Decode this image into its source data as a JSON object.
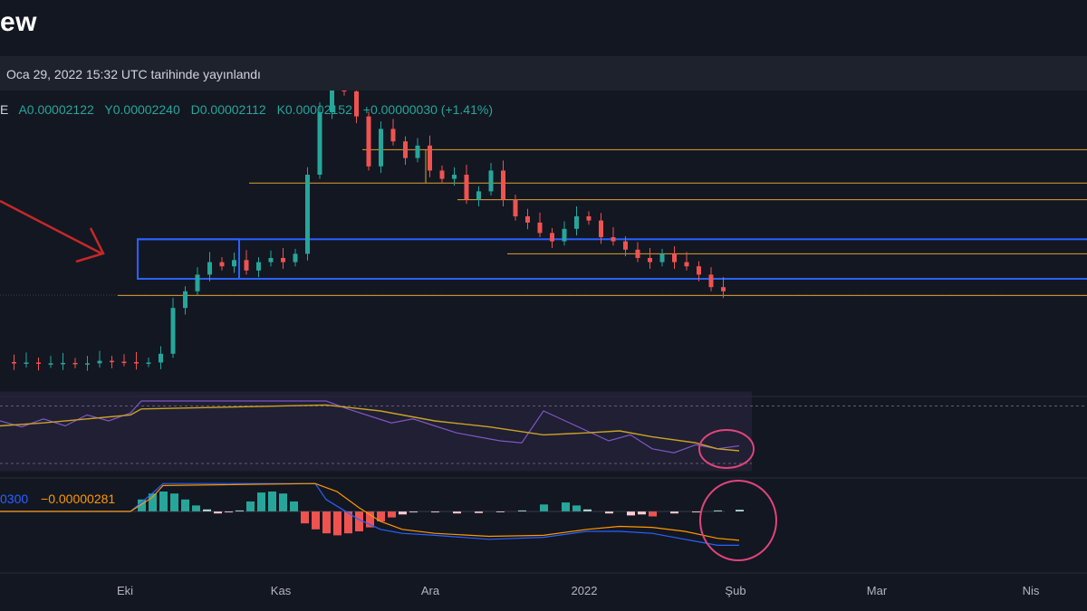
{
  "header": {
    "brand": "ew",
    "published": "Oca 29, 2022 15:32 UTC tarihinde yayınlandı"
  },
  "ohlc": {
    "lead": "E",
    "open": "A0.00002122",
    "high": "Y0.00002240",
    "low": "D0.00002112",
    "close": "K0.00002152",
    "change": "+0.00000030 (+1.41%)"
  },
  "macd_labels": {
    "value_1": "0300",
    "value_2": "−0.00000281"
  },
  "chart_data": {
    "type": "candlestick",
    "x_ticks": [
      "Eki",
      "Kas",
      "Ara",
      "2022",
      "Şub",
      "Mar",
      "Nis"
    ],
    "colors": {
      "background": "#131722",
      "up": "#26a69a",
      "down": "#ef5350",
      "level_line": "#e0a030",
      "zone_box": "#2962ff",
      "rsi": "#7e57c2",
      "rsi_ma": "#c9a227",
      "rsi_band": "#2a2440",
      "macd": "#2962ff",
      "signal": "#ff9800",
      "highlight_circle": "#e0457b",
      "arrow": "#c62828"
    },
    "price_close_series": [
      [
        0,
        2.0
      ],
      [
        2,
        1.97
      ],
      [
        4,
        1.99
      ],
      [
        6,
        1.96
      ],
      [
        8,
        1.97
      ],
      [
        10,
        1.98
      ],
      [
        12,
        1.95
      ],
      [
        14,
        1.97
      ],
      [
        16,
        2.03
      ],
      [
        18,
        2.01
      ],
      [
        20,
        2.0
      ],
      [
        22,
        1.98
      ],
      [
        24,
        1.99
      ],
      [
        26,
        2.2
      ],
      [
        28,
        3.3
      ],
      [
        30,
        3.7
      ],
      [
        32,
        4.1
      ],
      [
        34,
        4.4
      ],
      [
        36,
        4.3
      ],
      [
        38,
        4.45
      ],
      [
        40,
        4.2
      ],
      [
        42,
        4.4
      ],
      [
        44,
        4.5
      ],
      [
        46,
        4.4
      ],
      [
        48,
        4.6
      ],
      [
        50,
        6.5
      ],
      [
        52,
        8.0
      ],
      [
        54,
        8.6
      ],
      [
        56,
        8.5
      ],
      [
        58,
        7.9
      ],
      [
        60,
        6.7
      ],
      [
        62,
        7.6
      ],
      [
        64,
        7.3
      ],
      [
        66,
        6.9
      ],
      [
        68,
        7.2
      ],
      [
        70,
        6.6
      ],
      [
        72,
        6.4
      ],
      [
        74,
        6.5
      ],
      [
        76,
        5.9
      ],
      [
        78,
        6.1
      ],
      [
        80,
        6.6
      ],
      [
        82,
        5.9
      ],
      [
        84,
        5.5
      ],
      [
        86,
        5.35
      ],
      [
        88,
        5.1
      ],
      [
        90,
        4.9
      ],
      [
        92,
        5.2
      ],
      [
        94,
        5.5
      ],
      [
        96,
        5.4
      ],
      [
        98,
        5.0
      ],
      [
        100,
        4.9
      ],
      [
        102,
        4.7
      ],
      [
        104,
        4.5
      ],
      [
        106,
        4.4
      ],
      [
        108,
        4.6
      ],
      [
        110,
        4.4
      ],
      [
        112,
        4.3
      ],
      [
        114,
        4.1
      ],
      [
        116,
        3.8
      ],
      [
        118,
        3.7
      ]
    ],
    "level_lines": [
      {
        "y": 7.1,
        "x_from": 80
      },
      {
        "y": 6.3,
        "x_from": 55
      },
      {
        "y": 5.9,
        "x_from": 101
      },
      {
        "y": 4.6,
        "x_from": 112
      },
      {
        "y": 3.6,
        "x_from": 26
      }
    ],
    "zone": {
      "y_low": 4.0,
      "y_high": 4.95,
      "x_from": 26,
      "inner_x_to": 47
    },
    "rsi": [
      [
        0,
        50
      ],
      [
        4,
        44
      ],
      [
        8,
        52
      ],
      [
        12,
        45
      ],
      [
        16,
        56
      ],
      [
        20,
        50
      ],
      [
        24,
        58
      ],
      [
        26,
        70
      ],
      [
        60,
        70
      ],
      [
        64,
        62
      ],
      [
        68,
        55
      ],
      [
        72,
        48
      ],
      [
        76,
        52
      ],
      [
        80,
        45
      ],
      [
        84,
        38
      ],
      [
        88,
        34
      ],
      [
        92,
        30
      ],
      [
        96,
        28
      ],
      [
        100,
        60
      ],
      [
        104,
        50
      ],
      [
        108,
        40
      ],
      [
        112,
        30
      ],
      [
        116,
        36
      ],
      [
        120,
        22
      ],
      [
        124,
        18
      ],
      [
        128,
        26
      ],
      [
        132,
        22
      ],
      [
        136,
        25
      ]
    ],
    "rsi_ma": [
      [
        0,
        45
      ],
      [
        8,
        48
      ],
      [
        16,
        52
      ],
      [
        24,
        56
      ],
      [
        26,
        62
      ],
      [
        60,
        66
      ],
      [
        70,
        60
      ],
      [
        80,
        50
      ],
      [
        90,
        44
      ],
      [
        100,
        36
      ],
      [
        108,
        38
      ],
      [
        114,
        40
      ],
      [
        120,
        34
      ],
      [
        128,
        28
      ],
      [
        132,
        22
      ],
      [
        136,
        20
      ]
    ],
    "macd_hist": [
      [
        26,
        0.6
      ],
      [
        28,
        0.9
      ],
      [
        30,
        1.0
      ],
      [
        32,
        0.9
      ],
      [
        34,
        0.6
      ],
      [
        36,
        0.3
      ],
      [
        38,
        0.1
      ],
      [
        40,
        -0.1
      ],
      [
        42,
        -0.05
      ],
      [
        44,
        0.05
      ],
      [
        46,
        0.5
      ],
      [
        48,
        0.95
      ],
      [
        50,
        1.0
      ],
      [
        52,
        0.9
      ],
      [
        54,
        0.5
      ],
      [
        56,
        -0.6
      ],
      [
        58,
        -0.9
      ],
      [
        60,
        -1.1
      ],
      [
        62,
        -1.2
      ],
      [
        64,
        -1.1
      ],
      [
        66,
        -1.0
      ],
      [
        68,
        -0.8
      ],
      [
        70,
        -0.5
      ],
      [
        72,
        -0.3
      ],
      [
        74,
        -0.15
      ],
      [
        76,
        -0.05
      ],
      [
        80,
        -0.05
      ],
      [
        84,
        -0.1
      ],
      [
        88,
        -0.08
      ],
      [
        92,
        -0.02
      ],
      [
        96,
        0.05
      ],
      [
        100,
        0.35
      ],
      [
        104,
        0.45
      ],
      [
        106,
        0.3
      ],
      [
        108,
        0.1
      ],
      [
        112,
        -0.1
      ],
      [
        116,
        -0.2
      ],
      [
        118,
        -0.15
      ],
      [
        120,
        -0.25
      ],
      [
        124,
        -0.1
      ],
      [
        128,
        -0.05
      ],
      [
        132,
        0.05
      ],
      [
        136,
        0.08
      ]
    ],
    "macd_line": [
      [
        0,
        0.0
      ],
      [
        24,
        0.0
      ],
      [
        28,
        0.9
      ],
      [
        30,
        1.4
      ],
      [
        58,
        1.4
      ],
      [
        60,
        0.6
      ],
      [
        66,
        -0.4
      ],
      [
        70,
        -0.9
      ],
      [
        74,
        -1.1
      ],
      [
        80,
        -1.2
      ],
      [
        90,
        -1.4
      ],
      [
        100,
        -1.3
      ],
      [
        108,
        -1.0
      ],
      [
        114,
        -1.0
      ],
      [
        120,
        -1.1
      ],
      [
        126,
        -1.4
      ],
      [
        132,
        -1.7
      ],
      [
        136,
        -1.7
      ]
    ],
    "signal_line": [
      [
        0,
        0.0
      ],
      [
        24,
        0.0
      ],
      [
        28,
        0.7
      ],
      [
        30,
        1.3
      ],
      [
        58,
        1.4
      ],
      [
        62,
        1.0
      ],
      [
        66,
        0.2
      ],
      [
        70,
        -0.5
      ],
      [
        74,
        -0.9
      ],
      [
        80,
        -1.1
      ],
      [
        90,
        -1.25
      ],
      [
        100,
        -1.2
      ],
      [
        108,
        -0.9
      ],
      [
        114,
        -0.75
      ],
      [
        120,
        -0.8
      ],
      [
        126,
        -1.0
      ],
      [
        132,
        -1.35
      ],
      [
        136,
        -1.45
      ]
    ]
  }
}
